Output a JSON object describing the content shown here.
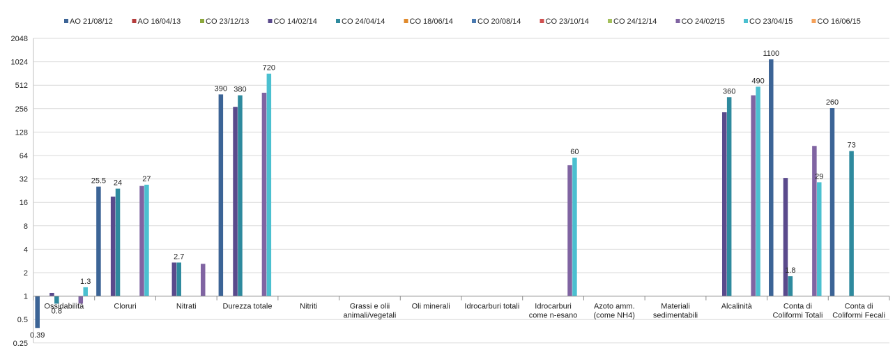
{
  "chart_data": {
    "type": "bar",
    "title": "",
    "xlabel": "",
    "ylabel": "",
    "yscale": "log2",
    "ylim": [
      0.25,
      2048
    ],
    "yticks": [
      "0.25",
      "0.5",
      "1",
      "2",
      "4",
      "8",
      "16",
      "32",
      "64",
      "128",
      "256",
      "512",
      "1024",
      "2048"
    ],
    "legend_position": "top",
    "grid": "horizontal",
    "categories": [
      [
        "Ossidabilità"
      ],
      [
        "Cloruri"
      ],
      [
        "Nitrati"
      ],
      [
        "Durezza totale"
      ],
      [
        "Nitriti"
      ],
      [
        "Grassi e olii",
        "animali/vegetali"
      ],
      [
        "Oli minerali"
      ],
      [
        "Idrocarburi totali"
      ],
      [
        "Idrocarburi",
        "come n-esano"
      ],
      [
        "Azoto amm.",
        "(come NH4)"
      ],
      [
        "Materiali",
        "sedimentabili"
      ],
      [
        "Alcalinità"
      ],
      [
        "Conta di",
        "Coliformi Totali"
      ],
      [
        "Conta di",
        "Coliformi Fecali"
      ]
    ],
    "series": [
      {
        "name": "AO  21/08/12",
        "color": "#3C6496",
        "values": [
          0.39,
          25.5,
          null,
          390,
          null,
          null,
          null,
          null,
          null,
          null,
          null,
          null,
          1100,
          260
        ]
      },
      {
        "name": "AO  16/04/13",
        "color": "#B43C3C",
        "values": [
          null,
          null,
          null,
          null,
          null,
          null,
          null,
          null,
          null,
          null,
          null,
          null,
          null,
          null
        ]
      },
      {
        "name": "CO 23/12/13",
        "color": "#8CA83C",
        "values": [
          null,
          null,
          null,
          null,
          null,
          null,
          null,
          null,
          null,
          null,
          null,
          null,
          null,
          null
        ]
      },
      {
        "name": "CO 14/02/14",
        "color": "#5A4A8C",
        "values": [
          1.1,
          19,
          2.7,
          270,
          null,
          null,
          null,
          null,
          null,
          null,
          null,
          230,
          33,
          null
        ]
      },
      {
        "name": "CO 24/04/14",
        "color": "#2E8A9E",
        "values": [
          0.8,
          24,
          2.7,
          380,
          null,
          null,
          null,
          null,
          null,
          null,
          null,
          360,
          1.8,
          73
        ]
      },
      {
        "name": "CO 18/06/14",
        "color": "#E08A2C",
        "values": [
          null,
          null,
          null,
          null,
          null,
          null,
          null,
          null,
          null,
          null,
          null,
          null,
          null,
          null
        ]
      },
      {
        "name": "CO 20/08/14",
        "color": "#4A7AB0",
        "values": [
          null,
          null,
          null,
          null,
          null,
          null,
          null,
          null,
          null,
          null,
          null,
          null,
          null,
          null
        ]
      },
      {
        "name": "CO 23/10/14",
        "color": "#D05050",
        "values": [
          null,
          null,
          null,
          null,
          null,
          null,
          null,
          null,
          null,
          null,
          null,
          null,
          null,
          null
        ]
      },
      {
        "name": "CO 24/12/14",
        "color": "#A4C05C",
        "values": [
          null,
          null,
          null,
          null,
          null,
          null,
          null,
          null,
          null,
          null,
          null,
          null,
          null,
          null
        ]
      },
      {
        "name": "CO 24/02/15",
        "color": "#8064A2",
        "values": [
          0.8,
          26,
          2.6,
          410,
          null,
          null,
          null,
          null,
          48,
          null,
          null,
          380,
          85,
          null
        ]
      },
      {
        "name": "CO 23/04/15",
        "color": "#4BC0D0",
        "values": [
          1.3,
          27,
          null,
          720,
          null,
          null,
          null,
          null,
          60,
          null,
          null,
          490,
          29,
          null
        ]
      },
      {
        "name": "CO 16/06/15",
        "color": "#F5A15A",
        "values": [
          null,
          null,
          null,
          null,
          null,
          null,
          null,
          null,
          null,
          null,
          null,
          null,
          null,
          null
        ]
      }
    ],
    "data_labels": [
      {
        "series": 0,
        "category": 0,
        "text": "0.39"
      },
      {
        "series": 4,
        "category": 0,
        "text": "0.8"
      },
      {
        "series": 10,
        "category": 0,
        "text": "1.3"
      },
      {
        "series": 0,
        "category": 1,
        "text": "25.5"
      },
      {
        "series": 4,
        "category": 1,
        "text": "24"
      },
      {
        "series": 10,
        "category": 1,
        "text": "27"
      },
      {
        "series": 4,
        "category": 2,
        "text": "2.7"
      },
      {
        "series": 0,
        "category": 3,
        "text": "390"
      },
      {
        "series": 4,
        "category": 3,
        "text": "380"
      },
      {
        "series": 10,
        "category": 3,
        "text": "720"
      },
      {
        "series": 10,
        "category": 8,
        "text": "60"
      },
      {
        "series": 4,
        "category": 11,
        "text": "360"
      },
      {
        "series": 10,
        "category": 11,
        "text": "490"
      },
      {
        "series": 0,
        "category": 12,
        "text": "1100"
      },
      {
        "series": 4,
        "category": 12,
        "text": "1.8"
      },
      {
        "series": 10,
        "category": 12,
        "text": "29"
      },
      {
        "series": 0,
        "category": 13,
        "text": "260"
      },
      {
        "series": 4,
        "category": 13,
        "text": "73"
      }
    ]
  }
}
